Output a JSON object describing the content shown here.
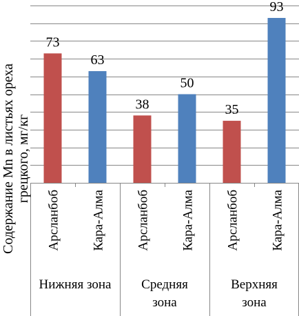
{
  "chart_data": {
    "type": "bar",
    "ylabel_lines": [
      "Содержание Mn в листьях ореха",
      "грецкого, мг/кг"
    ],
    "ylim": [
      0,
      100
    ],
    "grid": true,
    "colors": {
      "Арсланбоб": "#c0504d",
      "Кара-Алма": "#4f81bd"
    },
    "groups": [
      {
        "label_lines": [
          "Нижняя зона"
        ],
        "bars": [
          {
            "label": "Арсланбоб",
            "value": 73
          },
          {
            "label": "Кара-Алма",
            "value": 63
          }
        ]
      },
      {
        "label_lines": [
          "Средняя",
          "зона"
        ],
        "bars": [
          {
            "label": "Арсланбоб",
            "value": 38
          },
          {
            "label": "Кара-Алма",
            "value": 50
          }
        ]
      },
      {
        "label_lines": [
          "Верхняя",
          "зона"
        ],
        "bars": [
          {
            "label": "Арсланбоб",
            "value": 35
          },
          {
            "label": "Кара-Алма",
            "value": 93
          }
        ]
      }
    ]
  }
}
